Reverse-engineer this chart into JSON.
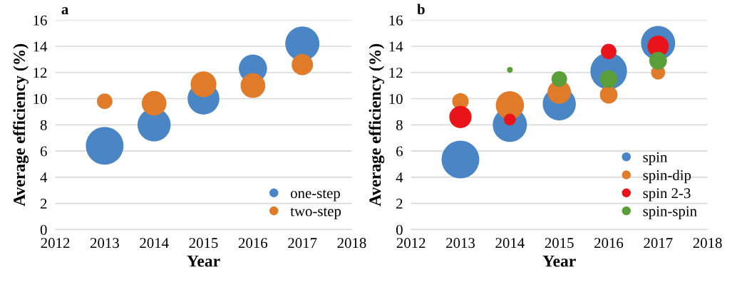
{
  "chart_data": [
    {
      "type": "bubble",
      "title": "a",
      "xlabel": "Year",
      "ylabel": "Average efficiency (%)",
      "x": [
        2013,
        2014,
        2015,
        2016,
        2017
      ],
      "xlim": [
        2012,
        2018
      ],
      "xticks": [
        2012,
        2013,
        2014,
        2015,
        2016,
        2017,
        2018
      ],
      "ylim": [
        0,
        16
      ],
      "yticks": [
        0,
        2,
        4,
        6,
        8,
        10,
        12,
        14,
        16
      ],
      "grid": "y",
      "legend": "bottom right",
      "series": [
        {
          "name": "one-step",
          "color": "#4a86c5",
          "values": [
            6.4,
            8.0,
            10.0,
            12.3,
            14.2
          ],
          "sizes": [
            1,
            0.77,
            0.71,
            0.56,
            0.82
          ]
        },
        {
          "name": "two-step",
          "color": "#e07b2a",
          "values": [
            9.8,
            9.65,
            11.1,
            11.0,
            12.6
          ],
          "sizes": [
            0.17,
            0.43,
            0.47,
            0.43,
            0.32
          ]
        }
      ]
    },
    {
      "type": "bubble",
      "title": "b",
      "xlabel": "Year",
      "ylabel": "Average efficiency (%)",
      "x": [
        2013,
        2014,
        2015,
        2016,
        2017
      ],
      "xlim": [
        2012,
        2018
      ],
      "xticks": [
        2012,
        2013,
        2014,
        2015,
        2016,
        2017,
        2018
      ],
      "ylim": [
        0,
        16
      ],
      "yticks": [
        0,
        2,
        4,
        6,
        8,
        10,
        12,
        14,
        16
      ],
      "grid": "y",
      "legend": "bottom right",
      "series": [
        {
          "name": "spin",
          "color": "#4a86c5",
          "values": [
            5.35,
            8.0,
            9.6,
            12.1,
            14.25
          ],
          "sizes": [
            1,
            0.82,
            0.77,
            0.94,
            0.82
          ]
        },
        {
          "name": "spin-dip",
          "color": "#e07b2a",
          "values": [
            9.8,
            9.5,
            10.5,
            10.3,
            12.0
          ],
          "sizes": [
            0.19,
            0.56,
            0.39,
            0.22,
            0.14
          ]
        },
        {
          "name": "spin 2-3",
          "color": "#e8141a",
          "values": [
            8.6,
            8.4,
            null,
            13.6,
            14.0
          ],
          "sizes": [
            0.35,
            0.1,
            null,
            0.17,
            0.32
          ]
        },
        {
          "name": "spin-spin",
          "color": "#5a9e3a",
          "values": [
            null,
            12.2,
            11.5,
            11.5,
            12.9
          ],
          "sizes": [
            null,
            0.024,
            0.17,
            0.22,
            0.22
          ]
        }
      ]
    }
  ]
}
